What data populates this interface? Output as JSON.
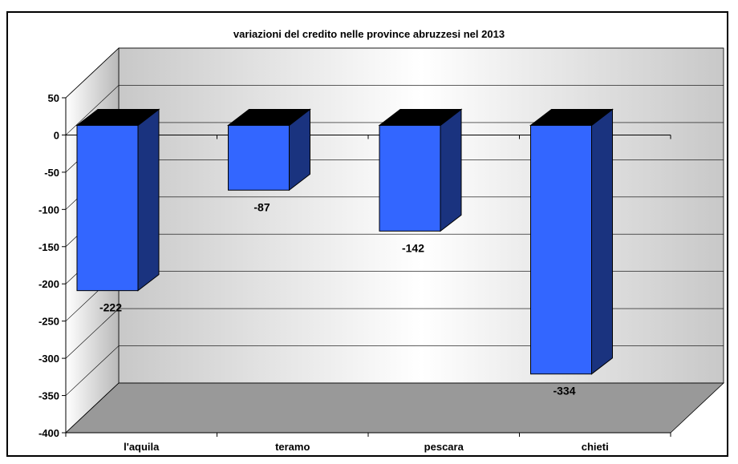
{
  "chart_data": {
    "type": "bar",
    "title": "variazioni del credito nelle province abruzzesi nel 2013",
    "categories": [
      "l'aquila",
      "teramo",
      "pescara",
      "chieti"
    ],
    "series": [
      {
        "values": [
          -222,
          -87,
          -142,
          -334
        ]
      }
    ],
    "data_labels": [
      "-222",
      "-87",
      "-142",
      "-334"
    ],
    "ylim": [
      -400,
      50
    ],
    "y_ticks": [
      50,
      0,
      -50,
      -100,
      -150,
      -200,
      -250,
      -300,
      -350,
      -400
    ],
    "y_tick_labels": [
      "50",
      "0",
      "-50",
      "-100",
      "-150",
      "-200",
      "-250",
      "-300",
      "-350",
      "-400"
    ],
    "xlabel": "",
    "ylabel": "",
    "grid": true,
    "legend": "none",
    "style": "3d-column",
    "colors": {
      "bar_front": "#3366FF",
      "bar_side": "#1A337F",
      "bar_top": "#000000",
      "floor": "#999999",
      "back_wall_light": "#FFFFFF",
      "back_wall_dark": "#C8C8C8"
    }
  }
}
